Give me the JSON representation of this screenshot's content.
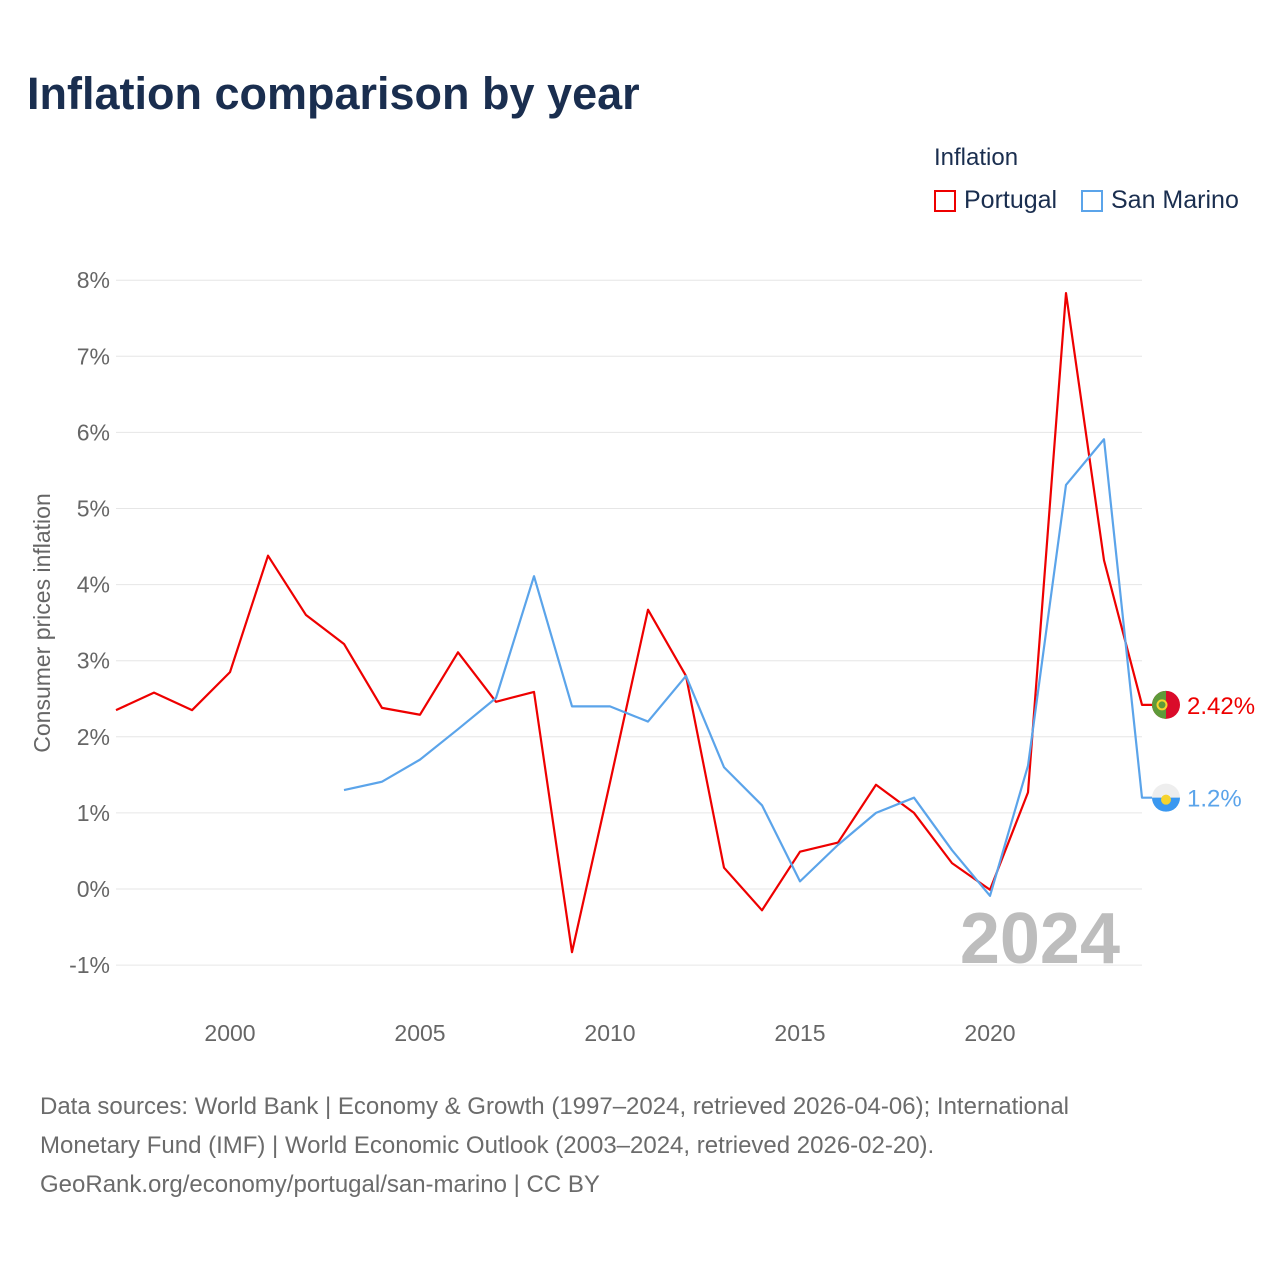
{
  "title": "Inflation comparison by year",
  "legend": {
    "title": "Inflation",
    "items": [
      "Portugal",
      "San Marino"
    ]
  },
  "footer": [
    "Data sources: World Bank | Economy & Growth (1997–2024, retrieved 2026-04-06); International",
    "Monetary Fund (IMF) | World Economic Outlook (2003–2024, retrieved 2026-02-20).",
    "GeoRank.org/economy/portugal/san-marino | CC BY"
  ],
  "chart_data": {
    "type": "line",
    "title": "Inflation comparison by year",
    "ylabel": "Consumer prices inflation",
    "xlabel": "",
    "ylim": [
      -1,
      8
    ],
    "xlim": [
      1997,
      2024
    ],
    "yticks": [
      -1,
      0,
      1,
      2,
      3,
      4,
      5,
      6,
      7,
      8
    ],
    "ytick_labels": [
      "-1%",
      "0%",
      "1%",
      "2%",
      "3%",
      "4%",
      "5%",
      "6%",
      "7%",
      "8%"
    ],
    "xticks": [
      2000,
      2005,
      2010,
      2015,
      2020
    ],
    "xtick_labels": [
      "2000",
      "2005",
      "2010",
      "2015",
      "2020"
    ],
    "year_watermark": "2024",
    "grid": true,
    "legend_position": "top-right",
    "series": [
      {
        "name": "Portugal",
        "color": "#ee0000",
        "end_label": "2.42%",
        "x": [
          1997,
          1998,
          1999,
          2000,
          2001,
          2002,
          2003,
          2004,
          2005,
          2006,
          2007,
          2008,
          2009,
          2010,
          2011,
          2012,
          2013,
          2014,
          2015,
          2016,
          2017,
          2018,
          2019,
          2020,
          2021,
          2022,
          2023,
          2024
        ],
        "values": [
          2.35,
          2.58,
          2.35,
          2.85,
          4.38,
          3.6,
          3.22,
          2.38,
          2.29,
          3.11,
          2.46,
          2.59,
          -0.83,
          1.4,
          3.67,
          2.8,
          0.28,
          -0.28,
          0.49,
          0.61,
          1.37,
          1.0,
          0.34,
          -0.01,
          1.27,
          7.83,
          4.32,
          2.42
        ]
      },
      {
        "name": "San Marino",
        "color": "#5ba4ea",
        "end_label": "1.2%",
        "x": [
          2003,
          2004,
          2005,
          2006,
          2007,
          2008,
          2009,
          2010,
          2011,
          2012,
          2013,
          2014,
          2015,
          2016,
          2017,
          2018,
          2019,
          2020,
          2021,
          2022,
          2023,
          2024
        ],
        "values": [
          1.3,
          1.41,
          1.7,
          2.1,
          2.51,
          4.11,
          2.4,
          2.4,
          2.2,
          2.8,
          1.6,
          1.1,
          0.1,
          0.58,
          1.0,
          1.2,
          0.51,
          -0.09,
          1.62,
          5.31,
          5.91,
          1.2
        ]
      }
    ]
  }
}
